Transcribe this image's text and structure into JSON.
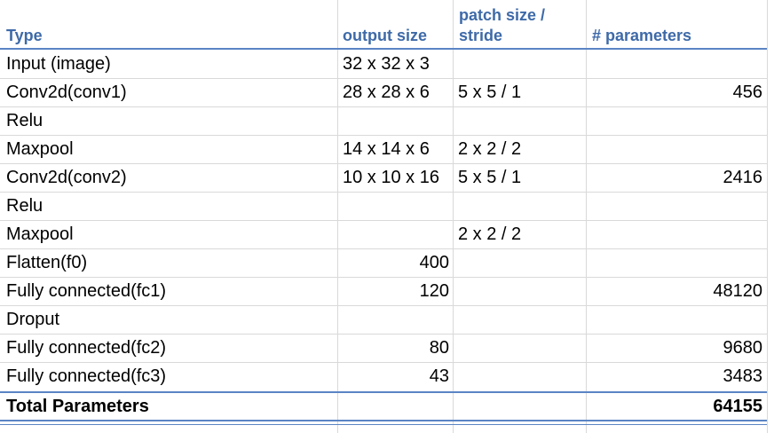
{
  "table": {
    "headers": {
      "type": "Type",
      "output_size": "output size",
      "patch_size_line1": "patch size /",
      "patch_size_line2": "stride",
      "parameters": "# parameters"
    },
    "rows": [
      {
        "type": "Input (image)",
        "output_size": "32 x 32 x 3",
        "patch": "",
        "params": ""
      },
      {
        "type": "Conv2d(conv1)",
        "output_size": "28 x 28 x 6",
        "patch": "5 x 5 / 1",
        "params": "456"
      },
      {
        "type": "Relu",
        "output_size": "",
        "patch": "",
        "params": ""
      },
      {
        "type": "Maxpool",
        "output_size": "14 x 14 x 6",
        "patch": "2 x 2 / 2",
        "params": ""
      },
      {
        "type": "Conv2d(conv2)",
        "output_size": "10 x 10 x 16",
        "patch": "5 x 5 / 1",
        "params": "2416"
      },
      {
        "type": "Relu",
        "output_size": "",
        "patch": "",
        "params": ""
      },
      {
        "type": "Maxpool",
        "output_size": "",
        "patch": "2 x 2 / 2",
        "params": ""
      },
      {
        "type": "Flatten(f0)",
        "output_size": "400",
        "patch": "",
        "params": ""
      },
      {
        "type": "Fully connected(fc1)",
        "output_size": "120",
        "patch": "",
        "params": "48120"
      },
      {
        "type": "Droput",
        "output_size": "",
        "patch": "",
        "params": ""
      },
      {
        "type": "Fully connected(fc2)",
        "output_size": "80",
        "patch": "",
        "params": "9680"
      },
      {
        "type": "Fully connected(fc3)",
        "output_size": "43",
        "patch": "",
        "params": "3483"
      }
    ],
    "total": {
      "label": "Total Parameters",
      "value": "64155"
    }
  },
  "colors": {
    "header_text": "#3e6aa8",
    "rule": "#5b84c4",
    "gridline": "#d9d9d9"
  }
}
